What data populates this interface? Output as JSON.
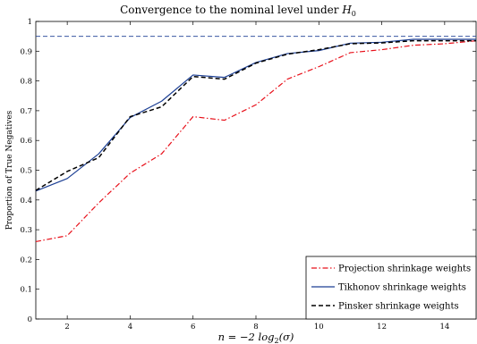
{
  "chart_data": {
    "type": "line",
    "title": "Convergence to the nominal level under",
    "title_math": "H",
    "title_math_sub": "0",
    "xlabel_parts": {
      "prefix": "n = −2 log",
      "sub": "2",
      "suffix": "(σ)"
    },
    "ylabel": "Proportion of True Negatives",
    "xlim": [
      1,
      15
    ],
    "ylim": [
      0,
      1
    ],
    "x_ticks": [
      2,
      4,
      6,
      8,
      10,
      12,
      14
    ],
    "y_ticks": [
      0,
      0.1,
      0.2,
      0.3,
      0.4,
      0.5,
      0.6,
      0.7,
      0.8,
      0.9,
      1
    ],
    "y_tick_labels": [
      "0",
      "0.1",
      "0.2",
      "0.3",
      "0.4",
      "0.5",
      "0.6",
      "0.7",
      "0.8",
      "0.9",
      "1"
    ],
    "x": [
      1,
      2,
      3,
      4,
      5,
      6,
      7,
      8,
      9,
      10,
      11,
      12,
      13,
      14,
      15
    ],
    "series": [
      {
        "name": "Projection shrinkage weights",
        "color": "#e8101a",
        "style": "dashdot",
        "values": [
          0.26,
          0.28,
          0.39,
          0.49,
          0.555,
          0.68,
          0.668,
          0.72,
          0.806,
          0.848,
          0.895,
          0.905,
          0.92,
          0.925,
          0.935
        ]
      },
      {
        "name": "Tikhonov shrinkage weights",
        "color": "#1c3f94",
        "style": "solid",
        "values": [
          0.43,
          0.472,
          0.555,
          0.677,
          0.732,
          0.82,
          0.812,
          0.862,
          0.892,
          0.902,
          0.927,
          0.93,
          0.94,
          0.94,
          0.94
        ]
      },
      {
        "name": "Pinsker shrinkage weights",
        "color": "#000000",
        "style": "dashed",
        "values": [
          0.432,
          0.496,
          0.542,
          0.68,
          0.713,
          0.815,
          0.806,
          0.86,
          0.89,
          0.905,
          0.925,
          0.928,
          0.935,
          0.935,
          0.935
        ]
      }
    ],
    "reference_line": {
      "y": 0.95,
      "color": "#1c3f94",
      "style": "dashed"
    },
    "grid": false,
    "legend_position": "bottom-right"
  }
}
